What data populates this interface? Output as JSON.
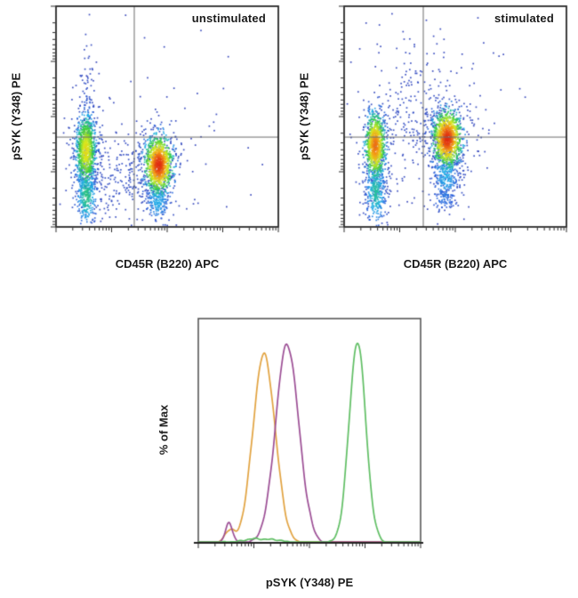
{
  "figure": {
    "background": "#ffffff",
    "box_color": "#2b2b2b",
    "hist_box_color": "#4d4d4d",
    "gate_line_color": "#6a6a6a",
    "tick_color": "#2a2a2a",
    "density_ramp": [
      [
        0.0,
        "#2a3ab5"
      ],
      [
        0.15,
        "#2a62dd"
      ],
      [
        0.3,
        "#1fb0e8"
      ],
      [
        0.5,
        "#2fcc3f"
      ],
      [
        0.7,
        "#d8e81f"
      ],
      [
        0.85,
        "#f49f16"
      ],
      [
        1.0,
        "#e02c12"
      ]
    ]
  },
  "chart_data": [
    {
      "type": "scatter",
      "subtype": "flow-pseudocolor-dot-plot",
      "title": "unstimulated",
      "xlabel": "CD45R (B220) APC",
      "ylabel": "pSYK (Y348) PE",
      "x_scale": "log",
      "y_scale": "log",
      "decades": 4,
      "grid": false,
      "quadrant_gate": {
        "x_frac": 0.352,
        "y_frac": 0.593
      },
      "populations": [
        {
          "name": "CD45R-neg dense core",
          "cx": 0.135,
          "cy": 0.655,
          "sx": 0.021,
          "sy": 0.078,
          "n": 850,
          "gain": 0.5
        },
        {
          "name": "CD45R-neg lower tail",
          "cx": 0.137,
          "cy": 0.86,
          "sx": 0.021,
          "sy": 0.06,
          "n": 300,
          "gain": 0.3
        },
        {
          "name": "CD45R-pos dense core",
          "cx": 0.462,
          "cy": 0.718,
          "sx": 0.03,
          "sy": 0.062,
          "n": 1000,
          "gain": 1.0
        },
        {
          "name": "CD45R-pos lower tail",
          "cx": 0.456,
          "cy": 0.885,
          "sx": 0.026,
          "sy": 0.045,
          "n": 190,
          "gain": 0.18
        },
        {
          "name": "CD45R-neg halo",
          "cx": 0.135,
          "cy": 0.7,
          "sx": 0.042,
          "sy": 0.13,
          "n": 230,
          "gain": 0.035
        },
        {
          "name": "CD45R-pos halo",
          "cx": 0.46,
          "cy": 0.73,
          "sx": 0.058,
          "sy": 0.1,
          "n": 240,
          "gain": 0.035
        },
        {
          "name": "bridge scatter",
          "cx": 0.3,
          "cy": 0.77,
          "sx": 0.095,
          "sy": 0.1,
          "n": 200,
          "gain": 0.025
        },
        {
          "name": "upper trail scatter",
          "cx": 0.138,
          "cy": 0.43,
          "sx": 0.022,
          "sy": 0.14,
          "n": 80,
          "gain": 0.025
        },
        {
          "name": "broad sparse scatter",
          "cx": 0.48,
          "cy": 0.52,
          "sx": 0.28,
          "sy": 0.23,
          "n": 55,
          "gain": 0.02
        }
      ]
    },
    {
      "type": "scatter",
      "subtype": "flow-pseudocolor-dot-plot",
      "title": "stimulated",
      "xlabel": "CD45R (B220) APC",
      "ylabel": "pSYK (Y348) PE",
      "x_scale": "log",
      "y_scale": "log",
      "decades": 4,
      "grid": false,
      "quadrant_gate": {
        "x_frac": 0.356,
        "y_frac": 0.593
      },
      "populations": [
        {
          "name": "CD45R-neg dense core",
          "cx": 0.14,
          "cy": 0.632,
          "sx": 0.021,
          "sy": 0.07,
          "n": 850,
          "gain": 0.72
        },
        {
          "name": "CD45R-neg lower tail",
          "cx": 0.142,
          "cy": 0.84,
          "sx": 0.021,
          "sy": 0.072,
          "n": 330,
          "gain": 0.25
        },
        {
          "name": "CD45R-pos dense core",
          "cx": 0.464,
          "cy": 0.6,
          "sx": 0.031,
          "sy": 0.062,
          "n": 1000,
          "gain": 1.0
        },
        {
          "name": "CD45R-pos lower tail",
          "cx": 0.458,
          "cy": 0.765,
          "sx": 0.027,
          "sy": 0.058,
          "n": 230,
          "gain": 0.2
        },
        {
          "name": "small blob below pos",
          "cx": 0.452,
          "cy": 0.872,
          "sx": 0.033,
          "sy": 0.026,
          "n": 85,
          "gain": 0.1
        },
        {
          "name": "CD45R-neg halo",
          "cx": 0.14,
          "cy": 0.69,
          "sx": 0.04,
          "sy": 0.125,
          "n": 230,
          "gain": 0.035
        },
        {
          "name": "CD45R-pos halo",
          "cx": 0.462,
          "cy": 0.62,
          "sx": 0.06,
          "sy": 0.105,
          "n": 260,
          "gain": 0.035
        },
        {
          "name": "bridge upper scatter",
          "cx": 0.33,
          "cy": 0.5,
          "sx": 0.11,
          "sy": 0.165,
          "n": 270,
          "gain": 0.025
        },
        {
          "name": "broad sparse scatter",
          "cx": 0.5,
          "cy": 0.43,
          "sx": 0.27,
          "sy": 0.22,
          "n": 60,
          "gain": 0.02
        }
      ]
    },
    {
      "type": "line",
      "subtype": "flow-histogram-overlay",
      "xlabel": "pSYK (Y348) PE",
      "ylabel": "% of Max",
      "x_scale": "log",
      "decades": 4,
      "grid": false,
      "ylim_frac": [
        0,
        1
      ],
      "series": [
        {
          "name": "orange",
          "color": "#e1a23f",
          "peaks": [
            {
              "center": 0.296,
              "height": 0.84,
              "width": 0.05
            },
            {
              "center": 0.138,
              "height": 0.05,
              "width": 0.022
            }
          ]
        },
        {
          "name": "magenta",
          "color": "#9b4d94",
          "peaks": [
            {
              "center": 0.4,
              "height": 0.885,
              "width": 0.052
            },
            {
              "center": 0.138,
              "height": 0.088,
              "width": 0.016
            }
          ]
        },
        {
          "name": "green",
          "color": "#5fbe63",
          "peaks": [
            {
              "center": 0.716,
              "height": 0.89,
              "width": 0.038
            },
            {
              "center": 0.28,
              "height": 0.018,
              "width": 0.08
            }
          ]
        }
      ]
    }
  ]
}
